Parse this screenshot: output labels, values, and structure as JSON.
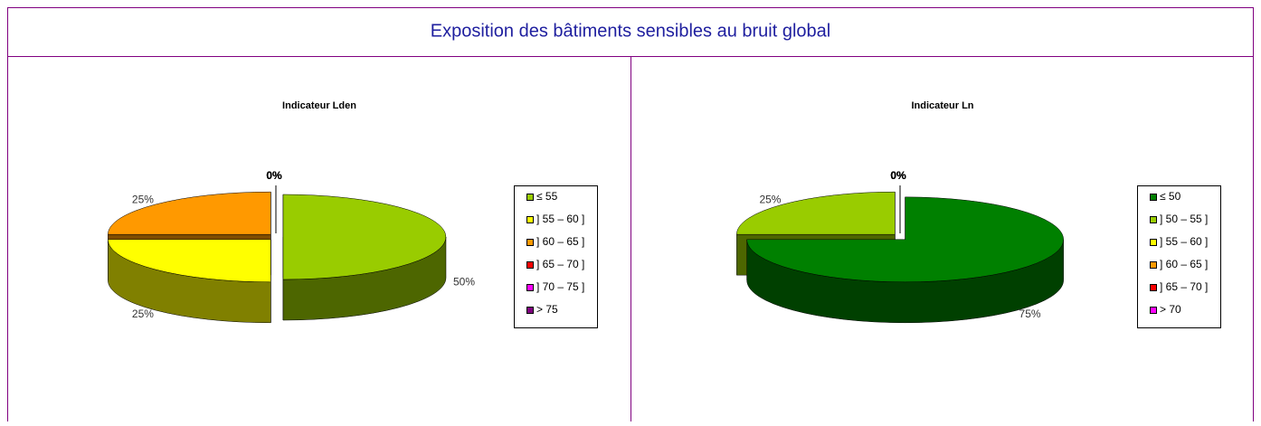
{
  "title": "Exposition des bâtiments sensibles au bruit global",
  "chart_data": [
    {
      "type": "pie",
      "title": "Indicateur Lden",
      "categories": [
        "≤ 55",
        "] 55 – 60 ]",
        "] 60 – 65 ]",
        "] 65 – 70 ]",
        "] 70 – 75 ]",
        "> 75"
      ],
      "values": [
        50,
        25,
        25,
        0,
        0,
        0
      ],
      "value_labels": [
        "50%",
        "25%",
        "25%",
        "0%",
        "0%",
        "0%"
      ],
      "colors": [
        "#99cc00",
        "#ffff00",
        "#ff9900",
        "#ff0000",
        "#ff00ff",
        "#800080"
      ]
    },
    {
      "type": "pie",
      "title": "Indicateur Ln",
      "categories": [
        "≤ 50",
        "] 50 – 55 ]",
        "] 55 – 60 ]",
        "] 60 – 65 ]",
        "] 65 – 70 ]",
        "> 70"
      ],
      "values": [
        75,
        25,
        0,
        0,
        0,
        0
      ],
      "value_labels": [
        "75%",
        "25%",
        "0%",
        "0%",
        "0%",
        "0%"
      ],
      "colors": [
        "#008000",
        "#99cc00",
        "#ffff00",
        "#ff9900",
        "#ff0000",
        "#ff00ff"
      ]
    }
  ]
}
